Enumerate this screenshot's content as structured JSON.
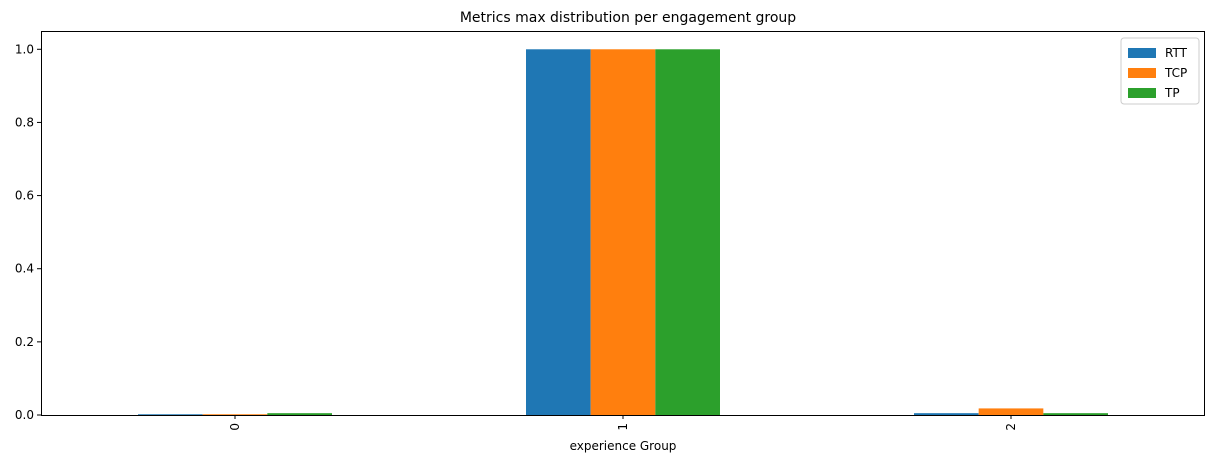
{
  "chart_data": {
    "type": "bar",
    "title": "Metrics max distribution per engagement group",
    "xlabel": "experience Group",
    "ylabel": "",
    "categories": [
      "0",
      "1",
      "2"
    ],
    "series": [
      {
        "name": "RTT",
        "color": "#1f77b4",
        "values": [
          0.002,
          1.0,
          0.005
        ]
      },
      {
        "name": "TCP",
        "color": "#ff7f0e",
        "values": [
          0.002,
          1.0,
          0.018
        ]
      },
      {
        "name": "TP",
        "color": "#2ca02c",
        "values": [
          0.005,
          1.0,
          0.005
        ]
      }
    ],
    "ylim": [
      0,
      1.05
    ],
    "yticks": [
      0.0,
      0.2,
      0.4,
      0.6,
      0.8,
      1.0
    ],
    "ytick_labels": [
      "0.0",
      "0.2",
      "0.4",
      "0.6",
      "0.8",
      "1.0"
    ],
    "grid": false,
    "legend_position": "top-right",
    "xtick_rotation": "vertical"
  }
}
